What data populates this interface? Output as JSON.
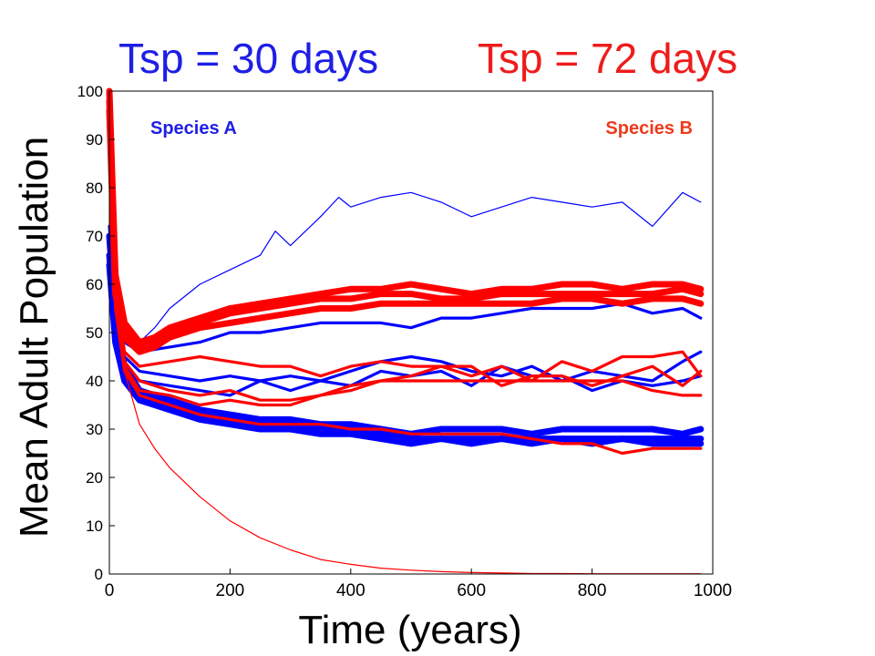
{
  "headline": {
    "left": {
      "text": "Tsp = 30 days",
      "color": "#1e1ee6"
    },
    "right": {
      "text": "Tsp = 72 days",
      "color": "#ee1c1c"
    }
  },
  "chart_data": {
    "type": "line",
    "title": "",
    "xlabel": "Time (years)",
    "ylabel": "Mean Adult Population",
    "xlim": [
      0,
      1000
    ],
    "ylim": [
      0,
      100
    ],
    "xticks": [
      0,
      200,
      400,
      600,
      800,
      1000
    ],
    "yticks": [
      0,
      10,
      20,
      30,
      40,
      50,
      60,
      70,
      80,
      90,
      100
    ],
    "grid": false,
    "annotations": [
      {
        "text": "Species A",
        "color": "#1e1ee6",
        "position": "top-left"
      },
      {
        "text": "Species B",
        "color": "#ee3a1c",
        "position": "top-right"
      }
    ],
    "series": [
      {
        "color": "#0000ff",
        "weight": "thin",
        "x": [
          0,
          10,
          25,
          50,
          75,
          100,
          150,
          200,
          250,
          275,
          300,
          350,
          380,
          400,
          450,
          500,
          550,
          600,
          650,
          700,
          750,
          800,
          850,
          900,
          950,
          980
        ],
        "y": [
          75,
          55,
          49,
          48,
          51,
          55,
          60,
          63,
          66,
          71,
          68,
          74,
          78,
          76,
          78,
          79,
          77,
          74,
          76,
          78,
          77,
          76,
          77,
          72,
          79,
          77
        ]
      },
      {
        "color": "#0000ff",
        "weight": "medium",
        "x": [
          0,
          10,
          25,
          50,
          100,
          150,
          200,
          250,
          300,
          350,
          400,
          450,
          500,
          550,
          600,
          650,
          700,
          750,
          800,
          850,
          900,
          950,
          980
        ],
        "y": [
          72,
          55,
          48,
          46,
          47,
          48,
          50,
          50,
          51,
          52,
          52,
          52,
          51,
          53,
          53,
          54,
          55,
          55,
          55,
          56,
          54,
          55,
          53
        ]
      },
      {
        "color": "#0000ff",
        "weight": "medium",
        "x": [
          0,
          10,
          25,
          50,
          100,
          150,
          200,
          250,
          300,
          350,
          400,
          450,
          500,
          550,
          600,
          650,
          700,
          750,
          800,
          850,
          900,
          950,
          980
        ],
        "y": [
          70,
          52,
          45,
          42,
          41,
          40,
          41,
          40,
          41,
          40,
          42,
          44,
          45,
          44,
          42,
          41,
          43,
          40,
          42,
          41,
          40,
          44,
          46
        ]
      },
      {
        "color": "#0000ff",
        "weight": "medium",
        "x": [
          0,
          10,
          25,
          50,
          100,
          150,
          200,
          250,
          300,
          350,
          400,
          450,
          500,
          550,
          600,
          650,
          700,
          750,
          800,
          850,
          900,
          950,
          980
        ],
        "y": [
          68,
          50,
          43,
          40,
          39,
          38,
          37,
          40,
          38,
          40,
          39,
          42,
          41,
          42,
          39,
          43,
          41,
          41,
          38,
          40,
          39,
          40,
          41
        ]
      },
      {
        "color": "#0000ff",
        "weight": "thick",
        "x": [
          0,
          10,
          25,
          50,
          100,
          150,
          200,
          250,
          300,
          350,
          400,
          450,
          500,
          550,
          600,
          650,
          700,
          750,
          800,
          850,
          900,
          950,
          980
        ],
        "y": [
          70,
          52,
          43,
          38,
          36,
          34,
          33,
          32,
          32,
          31,
          31,
          30,
          29,
          30,
          30,
          30,
          29,
          30,
          30,
          30,
          30,
          29,
          30
        ]
      },
      {
        "color": "#0000ff",
        "weight": "thick",
        "x": [
          0,
          10,
          25,
          50,
          100,
          150,
          200,
          250,
          300,
          350,
          400,
          450,
          500,
          550,
          600,
          650,
          700,
          750,
          800,
          850,
          900,
          950,
          980
        ],
        "y": [
          66,
          50,
          42,
          37,
          35,
          33,
          32,
          31,
          31,
          30,
          30,
          29,
          28,
          28,
          28,
          28,
          28,
          28,
          28,
          28,
          28,
          28,
          28
        ]
      },
      {
        "color": "#0000ff",
        "weight": "thick",
        "x": [
          0,
          10,
          25,
          50,
          100,
          150,
          200,
          250,
          300,
          350,
          400,
          450,
          500,
          550,
          600,
          650,
          700,
          750,
          800,
          850,
          900,
          950,
          980
        ],
        "y": [
          64,
          48,
          40,
          36,
          34,
          32,
          31,
          30,
          30,
          29,
          29,
          28,
          27,
          28,
          27,
          28,
          27,
          28,
          27,
          28,
          27,
          27,
          27
        ]
      },
      {
        "color": "#ff0000",
        "weight": "thick",
        "x": [
          0,
          10,
          25,
          50,
          75,
          100,
          150,
          200,
          250,
          300,
          350,
          400,
          450,
          500,
          550,
          600,
          650,
          700,
          750,
          800,
          850,
          900,
          950,
          980
        ],
        "y": [
          100,
          62,
          52,
          48,
          49,
          51,
          53,
          55,
          56,
          57,
          58,
          59,
          59,
          60,
          59,
          58,
          59,
          59,
          60,
          60,
          59,
          60,
          60,
          59
        ]
      },
      {
        "color": "#ff0000",
        "weight": "thick",
        "x": [
          0,
          10,
          25,
          50,
          75,
          100,
          150,
          200,
          250,
          300,
          350,
          400,
          450,
          500,
          550,
          600,
          650,
          700,
          750,
          800,
          850,
          900,
          950,
          980
        ],
        "y": [
          98,
          60,
          50,
          47,
          48,
          50,
          52,
          54,
          55,
          56,
          57,
          57,
          58,
          58,
          57,
          57,
          58,
          58,
          58,
          58,
          58,
          58,
          59,
          58
        ]
      },
      {
        "color": "#ff0000",
        "weight": "thick",
        "x": [
          0,
          10,
          25,
          50,
          75,
          100,
          150,
          200,
          250,
          300,
          350,
          400,
          450,
          500,
          550,
          600,
          650,
          700,
          750,
          800,
          850,
          900,
          950,
          980
        ],
        "y": [
          96,
          58,
          49,
          46,
          47,
          49,
          51,
          52,
          53,
          54,
          55,
          55,
          56,
          56,
          56,
          56,
          56,
          56,
          57,
          57,
          56,
          57,
          57,
          56
        ]
      },
      {
        "color": "#ff0000",
        "weight": "medium",
        "x": [
          0,
          10,
          25,
          50,
          100,
          150,
          200,
          250,
          300,
          350,
          400,
          450,
          500,
          550,
          600,
          650,
          700,
          750,
          800,
          850,
          900,
          950,
          980
        ],
        "y": [
          100,
          60,
          46,
          43,
          44,
          45,
          44,
          43,
          43,
          41,
          43,
          44,
          43,
          43,
          41,
          43,
          40,
          44,
          42,
          45,
          45,
          46,
          41
        ]
      },
      {
        "color": "#ff0000",
        "weight": "medium",
        "x": [
          0,
          10,
          25,
          50,
          100,
          150,
          200,
          250,
          300,
          350,
          400,
          450,
          500,
          550,
          600,
          650,
          700,
          750,
          800,
          850,
          900,
          950,
          980
        ],
        "y": [
          98,
          57,
          44,
          40,
          38,
          37,
          38,
          36,
          36,
          37,
          39,
          40,
          41,
          43,
          43,
          39,
          41,
          41,
          39,
          41,
          43,
          39,
          42
        ]
      },
      {
        "color": "#ff0000",
        "weight": "medium",
        "x": [
          0,
          10,
          25,
          50,
          100,
          150,
          200,
          250,
          300,
          350,
          400,
          450,
          500,
          550,
          600,
          650,
          700,
          750,
          800,
          850,
          900,
          950,
          980
        ],
        "y": [
          96,
          56,
          43,
          38,
          37,
          35,
          36,
          35,
          35,
          37,
          38,
          40,
          40,
          40,
          40,
          40,
          40,
          40,
          40,
          40,
          38,
          37,
          37
        ]
      },
      {
        "color": "#ff0000",
        "weight": "medium",
        "x": [
          0,
          10,
          25,
          50,
          100,
          150,
          200,
          250,
          300,
          350,
          400,
          450,
          500,
          550,
          600,
          650,
          700,
          750,
          800,
          850,
          900,
          950,
          980
        ],
        "y": [
          95,
          55,
          42,
          37,
          35,
          33,
          32,
          31,
          31,
          31,
          30,
          30,
          29,
          29,
          29,
          29,
          28,
          27,
          27,
          25,
          26,
          26,
          26
        ]
      },
      {
        "color": "#ff0000",
        "weight": "thin",
        "x": [
          0,
          10,
          25,
          50,
          75,
          100,
          150,
          200,
          250,
          300,
          350,
          400,
          450,
          500,
          550,
          600,
          650,
          700,
          750,
          800,
          850,
          900,
          950,
          980
        ],
        "y": [
          100,
          55,
          42,
          31,
          26,
          22,
          16,
          11,
          7.5,
          5,
          3,
          2,
          1.2,
          0.8,
          0.5,
          0.3,
          0.2,
          0.1,
          0.1,
          0.05,
          0.05,
          0.05,
          0.05,
          0.05
        ]
      }
    ]
  }
}
